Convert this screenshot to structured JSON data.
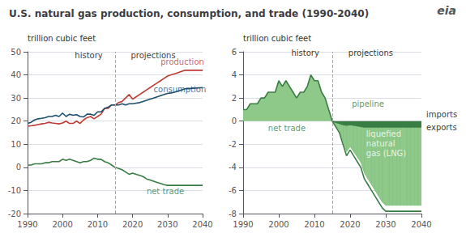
{
  "chart_data": [
    {
      "type": "line",
      "title": "U.S. natural gas production, consumption, and trade (1990-2040)",
      "ylabel": "trillion cubic feet",
      "xlim": [
        1990,
        2040
      ],
      "xticks": [
        1990,
        2000,
        2010,
        2020,
        2030,
        2040
      ],
      "ylim": [
        -20,
        50
      ],
      "yticks": [
        -20,
        -10,
        0,
        10,
        20,
        30,
        40,
        50
      ],
      "grid": true,
      "series": [
        {
          "color": "#be3a34",
          "x": [
            1990,
            1991,
            1992,
            1993,
            1994,
            1995,
            1996,
            1997,
            1998,
            1999,
            2000,
            2001,
            2002,
            2003,
            2004,
            2005,
            2006,
            2007,
            2008,
            2009,
            2010,
            2011,
            2012,
            2013,
            2014,
            2015
          ],
          "values": [
            17.8,
            18.0,
            18.2,
            18.5,
            18.8,
            19.0,
            19.5,
            19.2,
            19.0,
            18.8,
            19.2,
            20.0,
            19.0,
            19.0,
            20.0,
            19.0,
            20.5,
            21.5,
            22.0,
            21.0,
            22.0,
            23.0,
            25.5,
            25.5,
            27.0,
            27.0
          ]
        },
        {
          "color": "#be3a34",
          "x": [
            2015,
            2016,
            2017,
            2018,
            2019,
            2020,
            2021,
            2022,
            2023,
            2024,
            2025,
            2026,
            2027,
            2028,
            2029,
            2030,
            2031,
            2032,
            2033,
            2034,
            2035,
            2036,
            2037,
            2038,
            2039,
            2040
          ],
          "values": [
            27.0,
            28.0,
            28.5,
            30.0,
            31.5,
            29.5,
            30.5,
            31.5,
            32.5,
            33.5,
            34.5,
            35.5,
            36.5,
            37.5,
            38.5,
            39.5,
            40.0,
            40.5,
            41.0,
            41.5,
            42.0,
            42.0,
            42.0,
            42.0,
            42.0,
            42.0
          ]
        },
        {
          "color": "#1d4e6e",
          "x": [
            1990,
            1991,
            1992,
            1993,
            1994,
            1995,
            1996,
            1997,
            1998,
            1999,
            2000,
            2001,
            2002,
            2003,
            2004,
            2005,
            2006,
            2007,
            2008,
            2009,
            2010,
            2011,
            2012,
            2013,
            2014,
            2015
          ],
          "values": [
            19.0,
            19.5,
            20.5,
            21.0,
            21.2,
            21.5,
            22.0,
            22.0,
            22.5,
            22.0,
            23.5,
            22.0,
            23.0,
            22.5,
            22.8,
            22.0,
            21.8,
            23.0,
            23.0,
            22.5,
            24.0,
            24.0,
            25.5,
            26.0,
            27.0,
            27.0
          ]
        },
        {
          "color": "#1d4e6e",
          "x": [
            2015,
            2016,
            2017,
            2018,
            2019,
            2020,
            2021,
            2022,
            2023,
            2024,
            2025,
            2026,
            2027,
            2028,
            2029,
            2030,
            2031,
            2032,
            2033,
            2034,
            2035,
            2036,
            2037,
            2038,
            2039,
            2040
          ],
          "values": [
            27.0,
            27.0,
            27.5,
            27.0,
            27.5,
            27.5,
            27.8,
            28.0,
            28.5,
            29.0,
            29.5,
            30.0,
            30.5,
            31.0,
            31.5,
            32.0,
            32.2,
            32.5,
            33.0,
            33.5,
            34.0,
            34.0,
            34.2,
            34.3,
            34.4,
            34.5
          ]
        },
        {
          "color": "#3a7d44",
          "x": [
            1990,
            1991,
            1992,
            1993,
            1994,
            1995,
            1996,
            1997,
            1998,
            1999,
            2000,
            2001,
            2002,
            2003,
            2004,
            2005,
            2006,
            2007,
            2008,
            2009,
            2010,
            2011,
            2012,
            2013,
            2014,
            2015
          ],
          "values": [
            1.0,
            1.0,
            1.5,
            1.5,
            1.5,
            2.0,
            2.0,
            2.5,
            2.5,
            2.5,
            3.5,
            3.0,
            3.5,
            3.0,
            2.5,
            2.0,
            2.5,
            2.5,
            3.0,
            4.0,
            3.5,
            3.5,
            2.5,
            2.0,
            1.0,
            0.0
          ]
        },
        {
          "color": "#3a7d44",
          "x": [
            2015,
            2016,
            2017,
            2018,
            2019,
            2020,
            2021,
            2022,
            2023,
            2024,
            2025,
            2026,
            2027,
            2028,
            2029,
            2030,
            2031,
            2032,
            2033,
            2034,
            2035,
            2036,
            2037,
            2038,
            2039,
            2040
          ],
          "values": [
            0.0,
            -0.5,
            -1.0,
            -2.0,
            -3.0,
            -2.5,
            -3.0,
            -3.5,
            -4.0,
            -5.0,
            -5.5,
            -6.0,
            -6.5,
            -7.0,
            -7.5,
            -7.8,
            -7.8,
            -7.8,
            -7.8,
            -7.8,
            -7.8,
            -7.8,
            -7.8,
            -7.8,
            -7.8,
            -7.8
          ]
        }
      ],
      "vlines": [
        {
          "x": 2015,
          "color": "#aaaaaa"
        }
      ],
      "annotations": [
        {
          "text": "history",
          "x": 2003.5,
          "y": 46.5,
          "color": "#000000"
        },
        {
          "text": "projections",
          "x": 2019.5,
          "y": 46.5,
          "color": "#000000"
        },
        {
          "text": "production",
          "x": 2028,
          "y": 43.5,
          "color": "#be3a34"
        },
        {
          "text": "consumption",
          "x": 2026,
          "y": 31.5,
          "color": "#1d4e6e"
        },
        {
          "text": "net trade",
          "x": 2024,
          "y": -12.5,
          "color": "#3a7d44"
        }
      ]
    },
    {
      "type": "area",
      "ylabel": "trillion cubic feet",
      "xlim": [
        1990,
        2040
      ],
      "xticks": [
        1990,
        2000,
        2010,
        2020,
        2030,
        2040
      ],
      "ylim": [
        -8,
        6
      ],
      "yticks": [
        -8,
        -6,
        -4,
        -2,
        0,
        2,
        4,
        6
      ],
      "grid": true,
      "series": [
        {
          "type": "area",
          "color": "#8ec98a",
          "x": [
            1990,
            1991,
            1992,
            1993,
            1994,
            1995,
            1996,
            1997,
            1998,
            1999,
            2000,
            2001,
            2002,
            2003,
            2004,
            2005,
            2006,
            2007,
            2008,
            2009,
            2010,
            2011,
            2012,
            2013,
            2014,
            2015
          ],
          "values": [
            1.0,
            1.0,
            1.5,
            1.5,
            1.5,
            2.0,
            2.0,
            2.5,
            2.5,
            2.5,
            3.5,
            3.0,
            3.5,
            3.0,
            2.5,
            2.0,
            2.5,
            2.5,
            3.0,
            4.0,
            3.5,
            3.5,
            2.5,
            2.0,
            1.0,
            0.0
          ]
        },
        {
          "type": "area",
          "color": "#3a7d44",
          "x": [
            2015,
            2016,
            2017,
            2018,
            2019,
            2020,
            2021,
            2022,
            2023,
            2024,
            2025,
            2026,
            2027,
            2028,
            2029,
            2030,
            2031,
            2032,
            2033,
            2034,
            2035,
            2036,
            2037,
            2038,
            2039,
            2040
          ],
          "values": [
            0.0,
            -0.4,
            -0.8,
            -1.7,
            -2.65,
            -2.2,
            -2.65,
            -3.1,
            -3.55,
            -4.5,
            -5.0,
            -5.5,
            -6.0,
            -6.5,
            -7.0,
            -7.3,
            -7.3,
            -7.3,
            -7.3,
            -7.3,
            -7.3,
            -7.3,
            -7.3,
            -7.3,
            -7.3,
            -7.3
          ]
        },
        {
          "type": "band",
          "color": "#8ec98a",
          "x": [
            2015,
            2016,
            2017,
            2018,
            2019,
            2020,
            2021,
            2022,
            2023,
            2024,
            2025,
            2026,
            2027,
            2028,
            2029,
            2030,
            2031,
            2032,
            2033,
            2034,
            2035,
            2036,
            2037,
            2038,
            2039,
            2040
          ],
          "values": [
            0.0,
            -0.1,
            -0.2,
            -0.3,
            -0.35,
            -0.3,
            -0.35,
            -0.4,
            -0.45,
            -0.5,
            -0.5,
            -0.5,
            -0.5,
            -0.5,
            -0.5,
            -0.5,
            -0.5,
            -0.5,
            -0.5,
            -0.5,
            -0.5,
            -0.5,
            -0.5,
            -0.5,
            -0.5,
            -0.5
          ],
          "lower": [
            0.0,
            -0.4,
            -0.8,
            -1.7,
            -2.65,
            -2.2,
            -2.65,
            -3.1,
            -3.55,
            -4.5,
            -5.0,
            -5.5,
            -6.0,
            -6.5,
            -7.0,
            -7.3,
            -7.3,
            -7.3,
            -7.3,
            -7.3,
            -7.3,
            -7.3,
            -7.3,
            -7.3,
            -7.3,
            -7.3
          ]
        },
        {
          "type": "line",
          "color": "#3a7d44",
          "x": [
            1990,
            1991,
            1992,
            1993,
            1994,
            1995,
            1996,
            1997,
            1998,
            1999,
            2000,
            2001,
            2002,
            2003,
            2004,
            2005,
            2006,
            2007,
            2008,
            2009,
            2010,
            2011,
            2012,
            2013,
            2014,
            2015
          ],
          "values": [
            1.0,
            1.0,
            1.5,
            1.5,
            1.5,
            2.0,
            2.0,
            2.5,
            2.5,
            2.5,
            3.5,
            3.0,
            3.5,
            3.0,
            2.5,
            2.0,
            2.5,
            2.5,
            3.0,
            4.0,
            3.5,
            3.5,
            2.5,
            2.0,
            1.0,
            0.0
          ]
        },
        {
          "type": "line",
          "color": "#3a7d44",
          "x": [
            2015,
            2016,
            2017,
            2018,
            2019,
            2020,
            2021,
            2022,
            2023,
            2024,
            2025,
            2026,
            2027,
            2028,
            2029,
            2030,
            2031,
            2032,
            2033,
            2034,
            2035,
            2036,
            2037,
            2038,
            2039,
            2040
          ],
          "values": [
            0.0,
            -0.5,
            -1.0,
            -2.0,
            -3.0,
            -2.5,
            -3.0,
            -3.5,
            -4.0,
            -5.0,
            -5.5,
            -6.0,
            -6.5,
            -7.0,
            -7.5,
            -7.8,
            -7.8,
            -7.8,
            -7.8,
            -7.8,
            -7.8,
            -7.8,
            -7.8,
            -7.8,
            -7.8,
            -7.8
          ]
        },
        {
          "type": "line",
          "color": "#3a7d44",
          "x": [
            2015,
            2016,
            2017,
            2018,
            2019,
            2020,
            2021,
            2022,
            2023,
            2024,
            2025,
            2026,
            2027,
            2028,
            2029,
            2030,
            2031,
            2032,
            2033,
            2034,
            2035,
            2036,
            2037,
            2038,
            2039,
            2040
          ],
          "values": [
            0.0,
            -0.1,
            -0.2,
            -0.3,
            -0.35,
            -0.3,
            -0.35,
            -0.4,
            -0.45,
            -0.5,
            -0.5,
            -0.5,
            -0.5,
            -0.5,
            -0.5,
            -0.5,
            -0.5,
            -0.5,
            -0.5,
            -0.5,
            -0.5,
            -0.5,
            -0.5,
            -0.5,
            -0.5,
            -0.5
          ]
        }
      ],
      "vlines": [
        {
          "x": 2015,
          "color": "#aaaaaa"
        }
      ],
      "annotations": [
        {
          "text": "history",
          "x": 2003.5,
          "y": 5.5,
          "color": "#000000"
        },
        {
          "text": "projections",
          "x": 2019.5,
          "y": 5.5,
          "color": "#000000"
        },
        {
          "text": "net trade",
          "x": 1997,
          "y": -1.0,
          "color": "#3a7d44"
        },
        {
          "text": "pipeline",
          "x": 2020.5,
          "y": 1.1,
          "color": "#3a7d44"
        },
        {
          "text": "liquefied\nnatural\ngas (LNG)",
          "x": 2024.5,
          "y": -3.2,
          "color": "#ffffff"
        },
        {
          "text": "imports",
          "y": 0.55,
          "color": "#000000"
        },
        {
          "text": "exports",
          "y": -0.55,
          "color": "#000000"
        },
        {
          "text": "eia",
          "color": "#555555"
        }
      ]
    }
  ]
}
